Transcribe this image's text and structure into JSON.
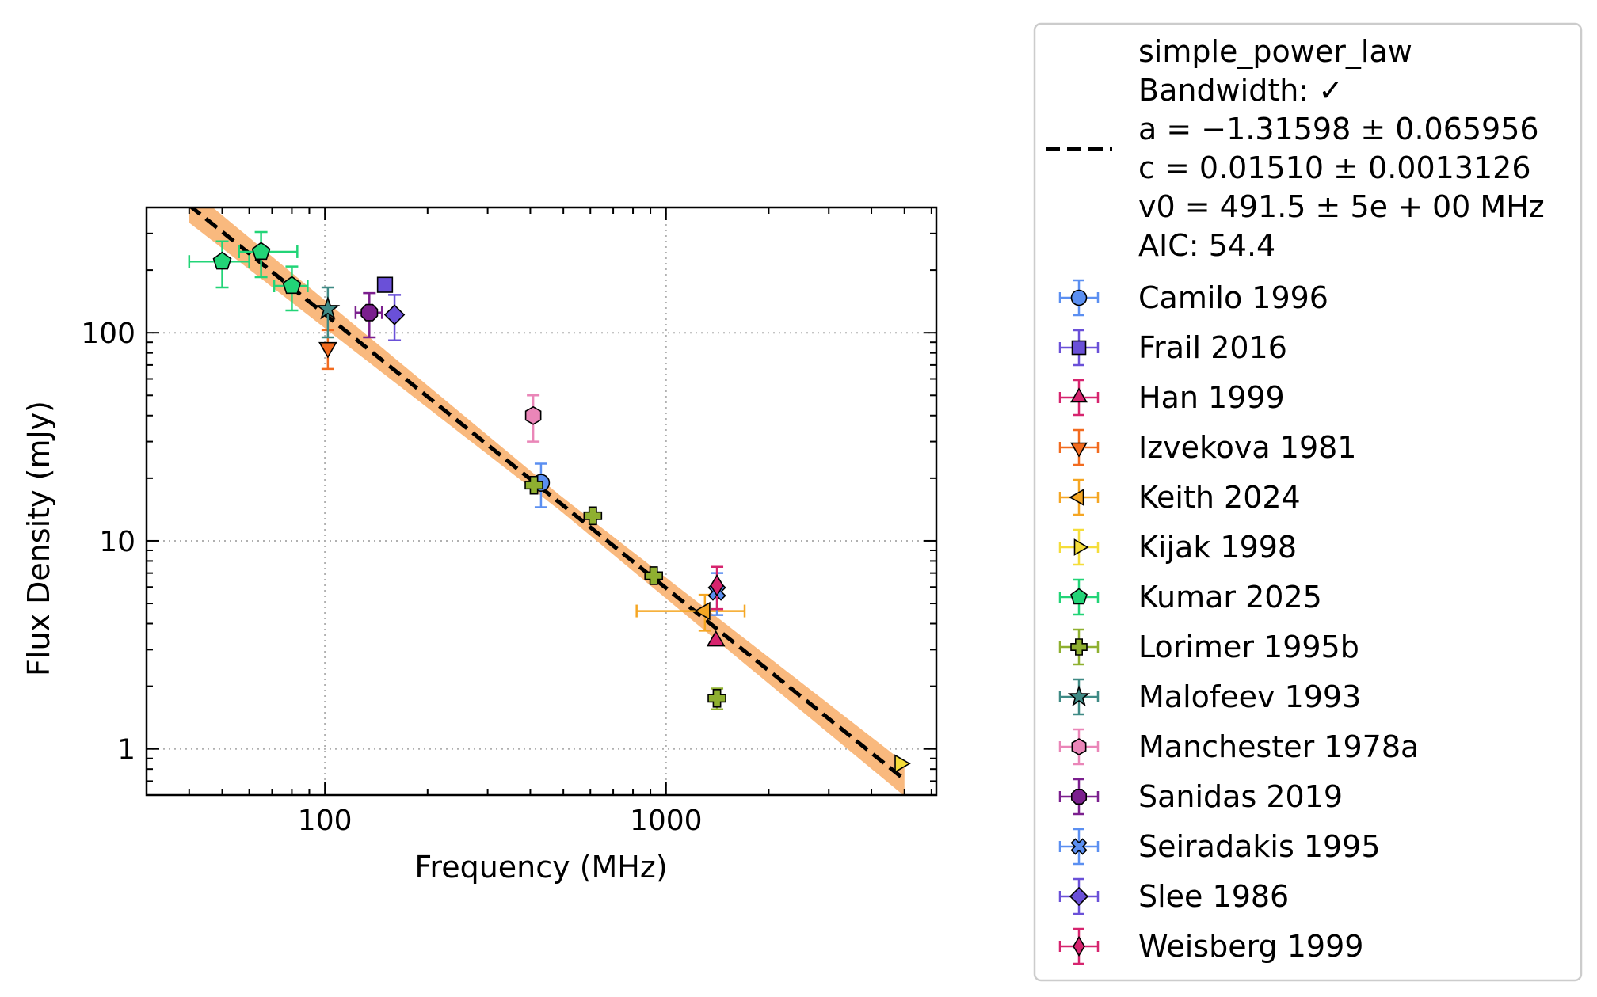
{
  "chart_data": {
    "type": "scatter",
    "xlabel": "Frequency (MHz)",
    "ylabel": "Flux Density (mJy)",
    "x_scale": "log",
    "y_scale": "log",
    "xlim": [
      30,
      6200
    ],
    "ylim": [
      0.6,
      400
    ],
    "x_ticks": [
      {
        "value": 100,
        "label": "100"
      },
      {
        "value": 1000,
        "label": "1000"
      }
    ],
    "y_ticks": [
      {
        "value": 1,
        "label": "1"
      },
      {
        "value": 10,
        "label": "10"
      },
      {
        "value": 100,
        "label": "100"
      }
    ],
    "grid": true,
    "legend_placement": "outside-right",
    "fit": {
      "legend_lines": [
        "simple_power_law",
        "Bandwidth: ✓",
        "a = −1.31598 ± 0.065956",
        "c = 0.01510 ± 0.0013126",
        "v0 = 491.5 ± 5e + 00 MHz",
        "AIC: 54.4"
      ],
      "a": -1.31598,
      "c": 0.0151,
      "v0": 491.5,
      "band_color": "#f9b97e",
      "line_color": "#000000",
      "x_range": [
        40,
        5000
      ]
    },
    "series": [
      {
        "name": "Camilo 1996",
        "marker": "circle",
        "color": "#5b8ff1",
        "points": [
          {
            "x": 430,
            "y": 19,
            "yerr": [
              4.5,
              4.5
            ]
          }
        ]
      },
      {
        "name": "Frail 2016",
        "marker": "square",
        "color": "#6a50d8",
        "points": [
          {
            "x": 150,
            "y": 170
          }
        ]
      },
      {
        "name": "Han 1999",
        "marker": "triangle-up",
        "color": "#d6246e",
        "points": [
          {
            "x": 1400,
            "y": 3.3
          }
        ]
      },
      {
        "name": "Izvekova 1981",
        "marker": "triangle-down",
        "color": "#f26b1f",
        "points": [
          {
            "x": 102,
            "y": 85,
            "yerr": [
              18,
              18
            ]
          }
        ]
      },
      {
        "name": "Keith 2024",
        "marker": "triangle-left",
        "color": "#f5a623",
        "points": [
          {
            "x": 1300,
            "y": 4.6,
            "xerr": [
              480,
              400
            ],
            "yerr": [
              0.9,
              0.9
            ]
          }
        ]
      },
      {
        "name": "Kijak 1998",
        "marker": "triangle-right",
        "color": "#f5dd3a",
        "points": [
          {
            "x": 4850,
            "y": 0.85
          }
        ]
      },
      {
        "name": "Kumar 2025",
        "marker": "pentagon",
        "color": "#22d477",
        "points": [
          {
            "x": 50,
            "y": 220,
            "xerr": [
              10,
              10
            ],
            "yerr": [
              55,
              55
            ]
          },
          {
            "x": 65,
            "y": 245,
            "xerr": [
              9,
              18
            ],
            "yerr": [
              60,
              60
            ]
          },
          {
            "x": 80,
            "y": 168,
            "xerr": [
              9,
              9
            ],
            "yerr": [
              40,
              40
            ]
          }
        ]
      },
      {
        "name": "Lorimer 1995b",
        "marker": "plus",
        "color": "#8fb030",
        "points": [
          {
            "x": 410,
            "y": 18.5
          },
          {
            "x": 610,
            "y": 13.2
          },
          {
            "x": 920,
            "y": 6.8
          },
          {
            "x": 1410,
            "y": 1.75,
            "yerr": [
              0.2,
              0.2
            ]
          }
        ]
      },
      {
        "name": "Malofeev 1993",
        "marker": "star",
        "color": "#3f8a85",
        "points": [
          {
            "x": 102,
            "y": 130,
            "yerr": [
              35,
              35
            ]
          }
        ]
      },
      {
        "name": "Manchester 1978a",
        "marker": "hexagon",
        "color": "#ea86b8",
        "points": [
          {
            "x": 408,
            "y": 40,
            "yerr": [
              10,
              10
            ]
          }
        ]
      },
      {
        "name": "Sanidas 2019",
        "marker": "octagon",
        "color": "#7b1f8e",
        "points": [
          {
            "x": 135,
            "y": 125,
            "xerr": [
              12,
              12
            ],
            "yerr": [
              30,
              30
            ]
          }
        ]
      },
      {
        "name": "Seiradakis 1995",
        "marker": "x",
        "color": "#5b8ff1",
        "points": [
          {
            "x": 1410,
            "y": 5.7,
            "yerr": [
              1.3,
              1.3
            ]
          }
        ]
      },
      {
        "name": "Slee 1986",
        "marker": "diamond",
        "color": "#6a50d8",
        "points": [
          {
            "x": 160,
            "y": 122,
            "yerr": [
              30,
              30
            ]
          }
        ]
      },
      {
        "name": "Weisberg 1999",
        "marker": "thin-diamond",
        "color": "#d6246e",
        "points": [
          {
            "x": 1410,
            "y": 6.1,
            "yerr": [
              1.4,
              1.4
            ]
          }
        ]
      }
    ]
  }
}
